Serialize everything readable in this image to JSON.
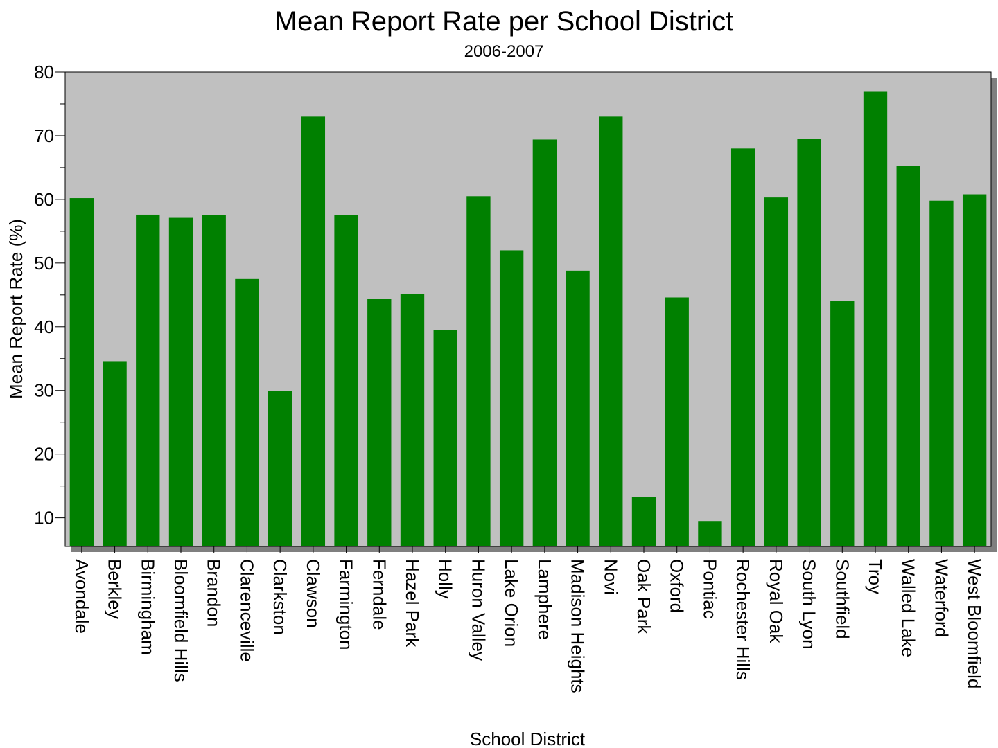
{
  "chart_data": {
    "type": "bar",
    "title": "Mean Report Rate per School District",
    "subtitle": "2006-2007",
    "xlabel": "School District",
    "ylabel": "Mean Report Rate (%)",
    "ylim": [
      5.5,
      80
    ],
    "yticks": [
      10,
      20,
      30,
      40,
      50,
      60,
      70,
      80
    ],
    "grid": false,
    "legend": "none",
    "categories": [
      "Avondale",
      "Berkley",
      "Birmingham",
      "Bloomfield Hills",
      "Brandon",
      "Clarenceville",
      "Clarkston",
      "Clawson",
      "Farmington",
      "Ferndale",
      "Hazel Park",
      "Holly",
      "Huron Valley",
      "Lake Orion",
      "Lamphere",
      "Madison Heights",
      "Novi",
      "Oak Park",
      "Oxford",
      "Pontiac",
      "Rochester Hills",
      "Royal Oak",
      "South Lyon",
      "Southfield",
      "Troy",
      "Walled Lake",
      "Waterford",
      "West Bloomfield"
    ],
    "values": [
      60.2,
      34.6,
      57.6,
      57.1,
      57.5,
      47.5,
      29.9,
      73.0,
      57.5,
      44.4,
      45.1,
      39.5,
      60.5,
      52.0,
      69.4,
      48.8,
      73.0,
      13.3,
      44.6,
      9.5,
      68.0,
      60.3,
      69.5,
      44.0,
      76.9,
      65.3,
      59.8,
      60.8
    ],
    "colors": {
      "bar": "#008000",
      "plot_background": "#c0c0c0",
      "shadow": "#7f7f7f",
      "frame": "#000000"
    }
  }
}
